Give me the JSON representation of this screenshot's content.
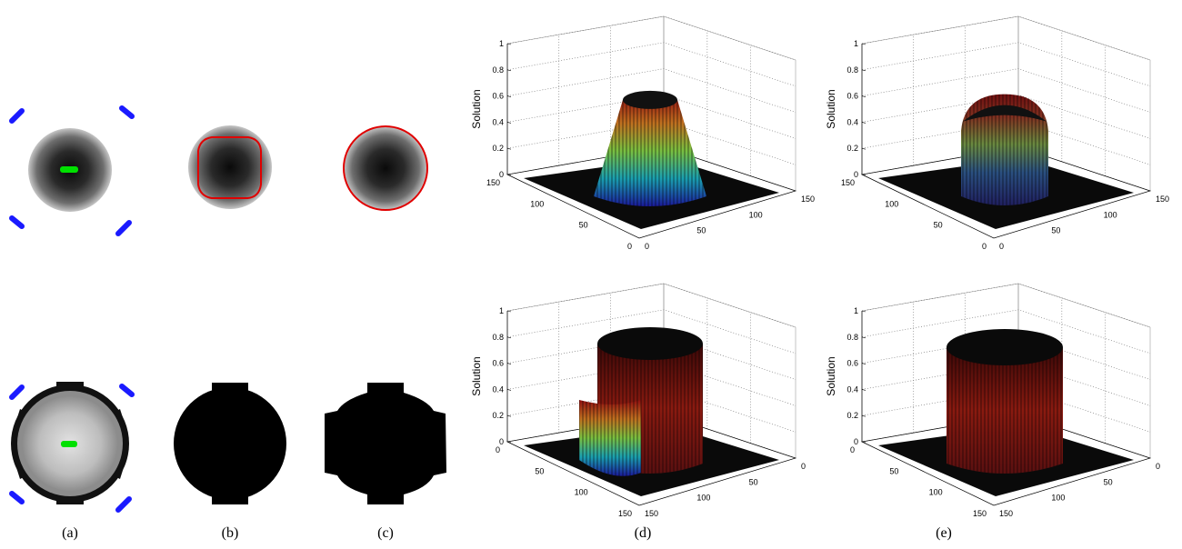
{
  "captions": [
    "(a)",
    "(b)",
    "(c)",
    "(d)",
    "(e)"
  ],
  "colors": {
    "seed_blue": "#1a1aff",
    "seed_green": "#00e000",
    "contour_red": "#e00000",
    "ring_gray": "#8c8c8c"
  },
  "chart_data": [
    {
      "type": "surface",
      "panel": "d-top",
      "zlabel": "Solution",
      "zticks": [
        "0",
        "0.2",
        "0.4",
        "0.6",
        "0.8",
        "1"
      ],
      "xticks": [
        "0",
        "50",
        "100",
        "150"
      ],
      "yticks": [
        "0",
        "50",
        "100",
        "150"
      ],
      "zlim": [
        0,
        1
      ],
      "shape": "truncated cone plateau",
      "plateau_height": 0.82
    },
    {
      "type": "surface",
      "panel": "e-top",
      "zlabel": "Solution",
      "zticks": [
        "0",
        "0.2",
        "0.4",
        "0.6",
        "0.8",
        "1"
      ],
      "xticks": [
        "0",
        "50",
        "100",
        "150"
      ],
      "yticks": [
        "0",
        "50",
        "100",
        "150"
      ],
      "zlim": [
        0,
        1
      ],
      "shape": "rounded dome",
      "plateau_height": 0.78
    },
    {
      "type": "surface",
      "panel": "d-bottom",
      "zlabel": "Solution",
      "zticks": [
        "0",
        "0.2",
        "0.4",
        "0.6",
        "0.8",
        "1"
      ],
      "xticks": [
        "0",
        "50",
        "100",
        "150"
      ],
      "yticks": [
        "0",
        "50",
        "100",
        "150"
      ],
      "zlim": [
        0,
        1
      ],
      "shape": "cylinder step",
      "plateau_height": 1.0
    },
    {
      "type": "surface",
      "panel": "e-bottom",
      "zlabel": "Solution",
      "zticks": [
        "0",
        "0.2",
        "0.4",
        "0.6",
        "0.8",
        "1"
      ],
      "xticks": [
        "0",
        "50",
        "100",
        "150"
      ],
      "yticks": [
        "0",
        "50",
        "100",
        "150"
      ],
      "zlim": [
        0,
        1
      ],
      "shape": "cylinder",
      "plateau_height": 1.0
    }
  ]
}
